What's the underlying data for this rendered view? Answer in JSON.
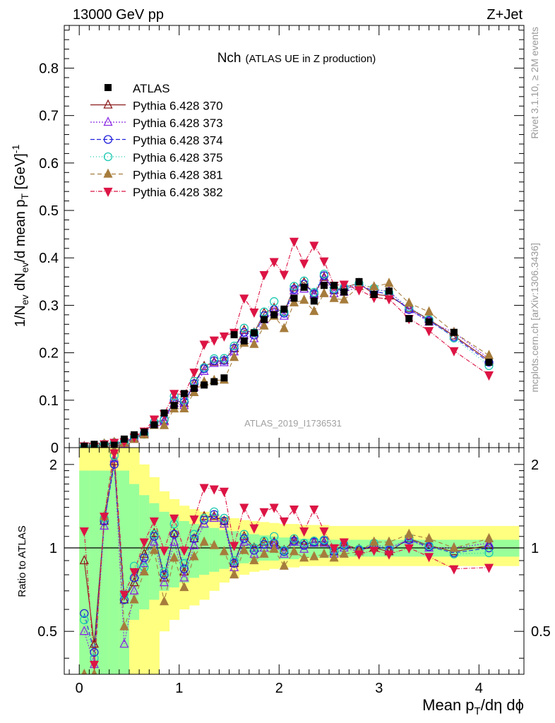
{
  "header": {
    "left": "13000 GeV pp",
    "right": "Z+Jet"
  },
  "side": {
    "rivet": "Rivet 3.1.10, ≥ 2M events",
    "mcplots": "mcplots.cern.ch [arXiv:1306.3436]"
  },
  "watermark": "ATLAS_2019_I1736531",
  "chart_data": {
    "type": "scatter",
    "title": "Nch",
    "subtitle": "(ATLAS UE in Z production)",
    "xlabel": "Mean p_T/dη dφ",
    "ylabel": "1/N_ev dN_ev/d mean p_T [GeV]^-1",
    "ratio_ylabel": "Ratio to ATLAS",
    "xlim": [
      -0.15,
      4.45
    ],
    "ylim": [
      0,
      0.89
    ],
    "ratio_ylim": [
      0.35,
      2.3
    ],
    "x_ticks": [
      0,
      1,
      2,
      3,
      4
    ],
    "x_tick_labels": [
      "0",
      "1",
      "2",
      "3",
      "4"
    ],
    "y_ticks": [
      0,
      0.1,
      0.2,
      0.3,
      0.4,
      0.5,
      0.6,
      0.7,
      0.8
    ],
    "y_tick_labels": [
      "0",
      "0.1",
      "0.2",
      "0.3",
      "0.4",
      "0.5",
      "0.6",
      "0.7",
      "0.8"
    ],
    "ratio_ticks": [
      0.5,
      1,
      2
    ],
    "ratio_tick_labels": [
      "0.5",
      "1",
      "2"
    ],
    "legend_position": "top-left",
    "x": [
      0.05,
      0.15,
      0.25,
      0.35,
      0.45,
      0.55,
      0.65,
      0.75,
      0.85,
      0.95,
      1.05,
      1.15,
      1.25,
      1.35,
      1.45,
      1.55,
      1.65,
      1.75,
      1.85,
      1.95,
      2.05,
      2.15,
      2.25,
      2.35,
      2.45,
      2.55,
      2.65,
      2.8,
      2.95,
      3.1,
      3.3,
      3.5,
      3.75,
      4.1
    ],
    "data": {
      "name": "ATLAS",
      "values": [
        0.003,
        0.007,
        0.006,
        0.005,
        0.018,
        0.027,
        0.033,
        0.048,
        0.073,
        0.089,
        0.114,
        0.125,
        0.132,
        0.139,
        0.147,
        0.238,
        0.225,
        0.242,
        0.27,
        0.28,
        0.292,
        0.315,
        0.338,
        0.309,
        0.342,
        0.342,
        0.328,
        0.35,
        0.323,
        0.33,
        0.272,
        0.265,
        0.243,
        0.18
      ]
    },
    "series": [
      {
        "name": "Pythia 6.428 370",
        "color": "#8b1a1a",
        "marker": "triangle-up-open",
        "dash": "",
        "ratio": [
          0.9,
          0.45,
          1.25,
          2.05,
          0.65,
          0.75,
          0.95,
          1.13,
          0.78,
          1.13,
          0.82,
          1.08,
          1.3,
          1.3,
          1.25,
          0.88,
          1.1,
          1.0,
          1.05,
          1.05,
          0.98,
          1.07,
          1.03,
          1.05,
          1.05,
          0.97,
          1.03,
          0.99,
          1.0,
          0.97,
          1.08,
          1.02,
          0.97,
          1.02
        ]
      },
      {
        "name": "Pythia 6.428 373",
        "color": "#8a2be2",
        "marker": "triangle-up-open",
        "dash": "2,2",
        "ratio": [
          0.5,
          0.38,
          1.2,
          2.1,
          0.45,
          0.7,
          0.88,
          1.05,
          0.75,
          1.05,
          0.78,
          1.02,
          1.22,
          1.28,
          1.22,
          0.85,
          1.05,
          0.95,
          1.0,
          1.02,
          0.95,
          1.05,
          0.99,
          1.04,
          1.04,
          0.95,
          1.0,
          0.97,
          1.03,
          1.0,
          1.07,
          1.0,
          1.0,
          1.04
        ]
      },
      {
        "name": "Pythia 6.428 374",
        "color": "#2323dc",
        "marker": "circle-open",
        "dash": "6,3",
        "ratio": [
          0.58,
          0.42,
          1.25,
          2.0,
          0.65,
          0.78,
          0.92,
          1.1,
          0.8,
          1.12,
          0.84,
          1.08,
          1.26,
          1.32,
          1.25,
          0.88,
          1.08,
          0.98,
          1.03,
          1.04,
          0.97,
          1.06,
          1.02,
          1.05,
          1.06,
          0.97,
          1.02,
          0.98,
          1.02,
          0.98,
          1.07,
          1.01,
          0.96,
          1.0
        ]
      },
      {
        "name": "Pythia 6.428 375",
        "color": "#1dc9b2",
        "marker": "circle-open",
        "dash": "1,3",
        "ratio": [
          0.55,
          0.4,
          1.28,
          2.15,
          0.68,
          0.86,
          0.85,
          1.12,
          0.82,
          1.22,
          0.88,
          1.12,
          1.28,
          1.35,
          1.28,
          0.9,
          1.12,
          1.0,
          1.06,
          1.1,
          0.98,
          1.08,
          1.04,
          1.06,
          1.07,
          0.98,
          1.03,
          0.99,
          1.04,
          0.99,
          1.09,
          1.02,
          0.95,
          0.96
        ]
      },
      {
        "name": "Pythia 6.428 381",
        "color": "#a67c3c",
        "marker": "triangle-up-filled",
        "dash": "6,4",
        "ratio": [
          0.35,
          0.35,
          1.3,
          2.25,
          0.52,
          0.65,
          0.82,
          0.98,
          0.64,
          0.92,
          0.72,
          0.93,
          1.05,
          1.02,
          0.97,
          0.8,
          0.98,
          0.9,
          0.95,
          0.99,
          0.86,
          0.97,
          0.92,
          0.93,
          0.95,
          0.92,
          0.95,
          0.97,
          1.05,
          1.05,
          1.12,
          1.08,
          1.0,
          1.08
        ]
      },
      {
        "name": "Pythia 6.428 382",
        "color": "#dc1444",
        "marker": "triangle-down-filled",
        "dash": "6,2,1,2",
        "ratio": [
          1.15,
          0.38,
          1.3,
          2.2,
          0.68,
          0.82,
          1.05,
          1.25,
          0.98,
          1.28,
          0.98,
          1.27,
          1.65,
          1.63,
          1.6,
          1.02,
          1.4,
          1.18,
          1.35,
          1.4,
          1.25,
          1.38,
          1.15,
          1.38,
          1.15,
          1.0,
          1.05,
          0.95,
          0.98,
          0.95,
          1.0,
          0.93,
          0.84,
          0.85
        ]
      }
    ],
    "uncertainty_band": {
      "x_edges": [
        0,
        0.1,
        0.2,
        0.3,
        0.4,
        0.5,
        0.6,
        0.7,
        0.8,
        0.9,
        1.0,
        1.1,
        1.2,
        1.3,
        1.4,
        1.5,
        1.6,
        1.7,
        1.8,
        1.9,
        2.0,
        2.1,
        2.2,
        2.3,
        2.4,
        2.5,
        2.6,
        2.7,
        2.9,
        3.0,
        3.2,
        3.4,
        3.6,
        3.9,
        4.4
      ],
      "inner_low": [
        0.3,
        0.3,
        0.3,
        0.3,
        0.3,
        0.55,
        0.6,
        0.65,
        0.7,
        0.72,
        0.75,
        0.78,
        0.8,
        0.82,
        0.84,
        0.86,
        0.88,
        0.89,
        0.9,
        0.9,
        0.91,
        0.91,
        0.92,
        0.92,
        0.92,
        0.93,
        0.93,
        0.93,
        0.93,
        0.93,
        0.93,
        0.93,
        0.93,
        0.93
      ],
      "inner_high": [
        1.9,
        1.9,
        1.9,
        1.9,
        1.9,
        1.7,
        1.55,
        1.45,
        1.35,
        1.3,
        1.25,
        1.22,
        1.2,
        1.18,
        1.16,
        1.15,
        1.13,
        1.12,
        1.11,
        1.1,
        1.09,
        1.09,
        1.08,
        1.08,
        1.08,
        1.07,
        1.07,
        1.07,
        1.07,
        1.07,
        1.07,
        1.07,
        1.07,
        1.07
      ],
      "outer_low": [
        0.3,
        0.3,
        0.3,
        0.3,
        0.3,
        0.3,
        0.3,
        0.3,
        0.5,
        0.55,
        0.6,
        0.62,
        0.65,
        0.7,
        0.75,
        0.78,
        0.8,
        0.82,
        0.83,
        0.84,
        0.85,
        0.85,
        0.86,
        0.86,
        0.86,
        0.86,
        0.86,
        0.86,
        0.86,
        0.86,
        0.86,
        0.86,
        0.86,
        0.86
      ],
      "outer_high": [
        2.3,
        2.3,
        2.3,
        2.3,
        2.3,
        2.3,
        2.0,
        1.8,
        1.6,
        1.5,
        1.42,
        1.38,
        1.35,
        1.32,
        1.3,
        1.28,
        1.26,
        1.25,
        1.24,
        1.23,
        1.22,
        1.22,
        1.21,
        1.21,
        1.21,
        1.2,
        1.2,
        1.2,
        1.2,
        1.2,
        1.2,
        1.2,
        1.2,
        1.2
      ],
      "inner_color": "#99ff99",
      "outer_color": "#ffff80"
    }
  }
}
